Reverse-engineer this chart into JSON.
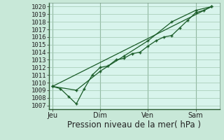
{
  "bg_color": "#c8e8d8",
  "plot_bg_color": "#d8f4ec",
  "grid_color": "#a0c8b0",
  "line_color": "#1a5c28",
  "marker_color": "#1a5c28",
  "xlabel": "Pression niveau de la mer( hPa )",
  "xlabel_fontsize": 8.5,
  "tick_label_fontsize": 6.5,
  "xtick_labels": [
    "Jeu",
    "Dim",
    "Ven",
    "Sam"
  ],
  "xtick_positions": [
    0,
    3,
    6,
    9
  ],
  "xlim": [
    -0.2,
    10.5
  ],
  "ylim": [
    1006.5,
    1020.5
  ],
  "yticks": [
    1007,
    1008,
    1009,
    1010,
    1011,
    1012,
    1013,
    1014,
    1015,
    1016,
    1017,
    1018,
    1019,
    1020
  ],
  "series1_x": [
    0.0,
    0.5,
    1.0,
    1.5,
    2.0,
    2.5,
    3.0,
    3.5,
    4.0,
    4.5,
    5.0,
    5.5,
    6.0,
    6.5,
    7.0,
    7.5,
    8.0,
    8.5,
    9.0,
    9.5,
    10.0
  ],
  "series1_y": [
    1009.5,
    1009.2,
    1008.2,
    1007.2,
    1009.2,
    1011.0,
    1012.0,
    1012.2,
    1013.0,
    1013.2,
    1013.8,
    1014.0,
    1014.8,
    1015.5,
    1016.0,
    1016.2,
    1017.2,
    1018.2,
    1019.2,
    1019.5,
    1020.0
  ],
  "series2_x": [
    0.0,
    1.5,
    3.0,
    4.5,
    6.0,
    7.5,
    9.0,
    10.0
  ],
  "series2_y": [
    1009.5,
    1009.0,
    1011.5,
    1013.5,
    1015.5,
    1018.0,
    1019.5,
    1020.0
  ],
  "series3_x": [
    0.0,
    10.0
  ],
  "series3_y": [
    1009.5,
    1020.0
  ],
  "vline_positions": [
    0,
    3,
    6,
    9
  ]
}
